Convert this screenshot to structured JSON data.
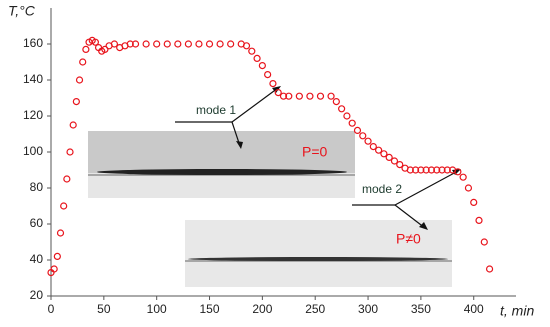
{
  "chart_data": {
    "type": "scatter",
    "xlabel": "t, min",
    "ylabel": "T,°C",
    "xlim": [
      0,
      440
    ],
    "ylim": [
      20,
      180
    ],
    "xticks": [
      0,
      50,
      100,
      150,
      200,
      250,
      300,
      350,
      400
    ],
    "yticks": [
      20,
      40,
      60,
      80,
      100,
      120,
      140,
      160
    ],
    "color": "#e8141c",
    "x": [
      0,
      3,
      6,
      9,
      12,
      15,
      18,
      21,
      24,
      27,
      30,
      33,
      36,
      39,
      42,
      45,
      48,
      51,
      55,
      60,
      65,
      70,
      75,
      80,
      90,
      100,
      110,
      120,
      130,
      140,
      150,
      160,
      170,
      180,
      185,
      190,
      195,
      200,
      205,
      210,
      215,
      220,
      225,
      235,
      245,
      255,
      265,
      270,
      275,
      280,
      285,
      290,
      295,
      300,
      305,
      310,
      315,
      320,
      325,
      330,
      335,
      340,
      345,
      350,
      355,
      360,
      365,
      370,
      375,
      380,
      385,
      390,
      395,
      400,
      405,
      410,
      415
    ],
    "values": [
      33,
      35,
      42,
      55,
      70,
      85,
      100,
      115,
      128,
      140,
      150,
      157,
      161,
      162,
      161,
      158,
      156,
      157,
      159,
      160,
      158,
      159,
      160,
      160,
      160,
      160,
      160,
      160,
      160,
      160,
      160,
      160,
      160,
      160,
      159,
      156,
      152,
      148,
      143,
      138,
      133,
      131,
      131,
      131,
      131,
      131,
      131,
      128,
      124,
      120,
      116,
      112,
      109,
      106,
      103,
      101,
      99,
      97,
      95,
      93,
      91,
      90,
      90,
      90,
      90,
      90,
      90,
      90,
      90,
      90,
      89,
      86,
      80,
      72,
      62,
      50,
      35
    ],
    "annotations": [
      "mode 1",
      "mode 2",
      "P=0",
      "P≠0"
    ]
  }
}
